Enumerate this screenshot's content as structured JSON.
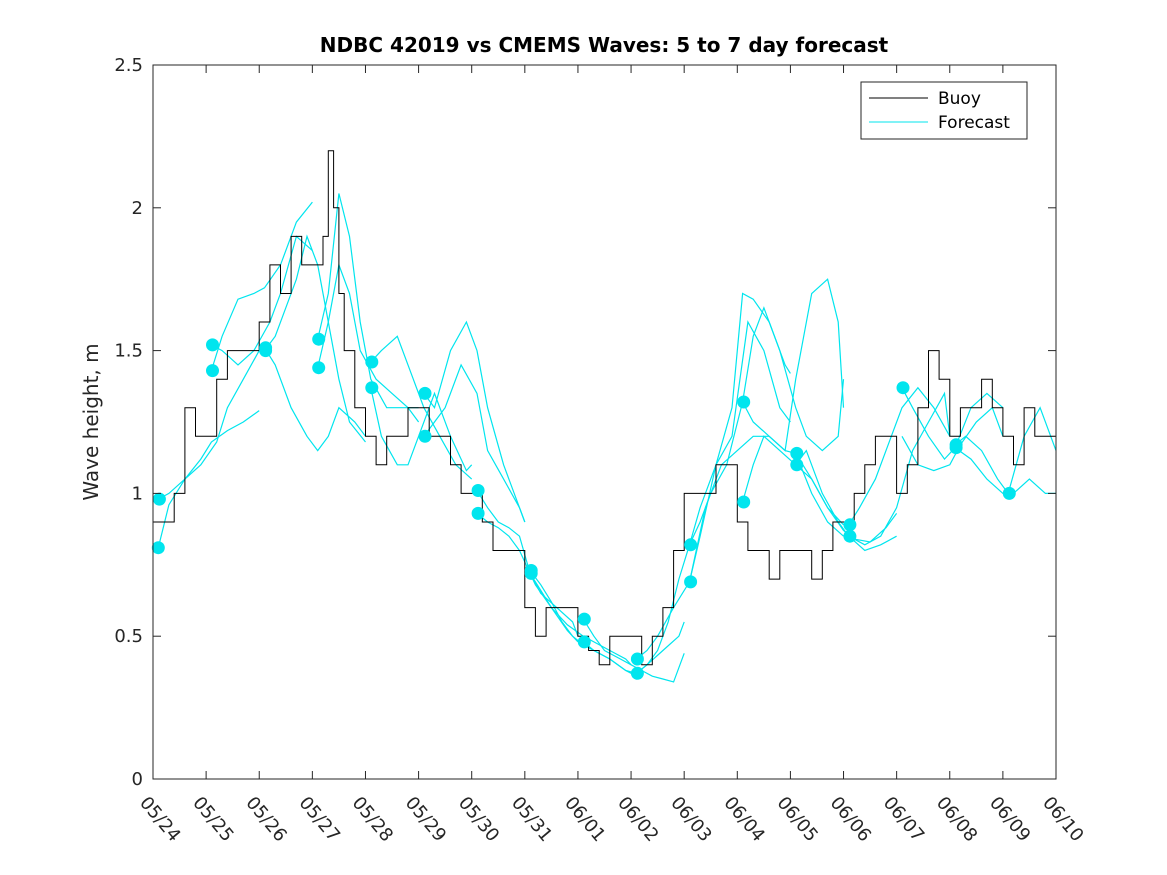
{
  "chart_data": {
    "type": "line",
    "title": "NDBC 42019 vs CMEMS Waves: 5 to 7 day forecast",
    "xlabel": "",
    "ylabel": "Wave height, m",
    "xlim": [
      "05/24",
      "06/10"
    ],
    "ylim": [
      0,
      2.5
    ],
    "x_ticks": [
      "05/24",
      "05/25",
      "05/26",
      "05/27",
      "05/28",
      "05/29",
      "05/30",
      "05/31",
      "06/01",
      "06/02",
      "06/03",
      "06/04",
      "06/05",
      "06/06",
      "06/07",
      "06/08",
      "06/09",
      "06/10"
    ],
    "y_ticks": [
      "0",
      "0.5",
      "1",
      "1.5",
      "2",
      "2.5"
    ],
    "grid": false,
    "legend": {
      "position": "top-right",
      "entries": [
        "Buoy",
        "Forecast"
      ]
    },
    "colors": {
      "buoy": "#000000",
      "forecast": "#00e5ee"
    },
    "buoy": {
      "name": "Buoy",
      "x": [
        0.0,
        0.2,
        0.4,
        0.6,
        0.8,
        1.0,
        1.2,
        1.4,
        1.6,
        1.8,
        2.0,
        2.2,
        2.4,
        2.6,
        2.8,
        3.0,
        3.2,
        3.3,
        3.4,
        3.5,
        3.6,
        3.8,
        4.0,
        4.2,
        4.4,
        4.6,
        4.8,
        5.0,
        5.2,
        5.4,
        5.6,
        5.8,
        6.0,
        6.2,
        6.4,
        6.6,
        6.8,
        7.0,
        7.2,
        7.4,
        7.6,
        7.8,
        8.0,
        8.2,
        8.4,
        8.6,
        8.8,
        9.0,
        9.2,
        9.4,
        9.6,
        9.8,
        10.0,
        10.2,
        10.4,
        10.6,
        10.8,
        11.0,
        11.2,
        11.4,
        11.6,
        11.8,
        12.0,
        12.2,
        12.4,
        12.6,
        12.8,
        13.0,
        13.2,
        13.4,
        13.6,
        13.8,
        14.0,
        14.2,
        14.4,
        14.6,
        14.8,
        15.0,
        15.2,
        15.4,
        15.6,
        15.8,
        16.0,
        16.2,
        16.4,
        16.6,
        16.8,
        17.0
      ],
      "y": [
        0.9,
        0.9,
        1.0,
        1.3,
        1.2,
        1.2,
        1.4,
        1.5,
        1.5,
        1.5,
        1.6,
        1.8,
        1.7,
        1.9,
        1.8,
        1.8,
        1.9,
        2.2,
        2.0,
        1.7,
        1.5,
        1.3,
        1.2,
        1.1,
        1.2,
        1.2,
        1.3,
        1.3,
        1.2,
        1.2,
        1.1,
        1.0,
        1.0,
        0.9,
        0.8,
        0.8,
        0.8,
        0.6,
        0.5,
        0.6,
        0.6,
        0.6,
        0.5,
        0.45,
        0.4,
        0.5,
        0.5,
        0.5,
        0.4,
        0.5,
        0.6,
        0.8,
        1.0,
        1.0,
        1.0,
        1.1,
        1.1,
        0.9,
        0.8,
        0.8,
        0.7,
        0.8,
        0.8,
        0.8,
        0.7,
        0.8,
        0.9,
        0.9,
        1.0,
        1.1,
        1.2,
        1.2,
        1.0,
        1.1,
        1.3,
        1.5,
        1.4,
        1.2,
        1.3,
        1.3,
        1.4,
        1.3,
        1.2,
        1.1,
        1.3,
        1.2,
        1.2,
        1.1
      ]
    },
    "forecast_runs": [
      {
        "x": [
          0.1,
          0.3,
          0.6,
          0.9,
          1.1,
          1.4,
          1.7,
          2.0
        ],
        "y": [
          0.81,
          0.96,
          1.05,
          1.12,
          1.18,
          1.22,
          1.25,
          1.29
        ]
      },
      {
        "x": [
          0.1,
          0.3,
          0.6,
          0.9,
          1.2,
          1.4,
          1.7,
          2.0
        ],
        "y": [
          0.98,
          1.0,
          1.05,
          1.1,
          1.18,
          1.3,
          1.4,
          1.5
        ]
      },
      {
        "x": [
          1.1,
          1.3,
          1.6,
          1.9,
          2.1,
          2.4,
          2.7,
          3.0
        ],
        "y": [
          1.43,
          1.55,
          1.68,
          1.7,
          1.72,
          1.8,
          1.95,
          2.02
        ]
      },
      {
        "x": [
          1.1,
          1.3,
          1.6,
          1.9,
          2.2,
          2.4,
          2.7,
          3.0
        ],
        "y": [
          1.52,
          1.5,
          1.45,
          1.5,
          1.6,
          1.7,
          1.9,
          1.85
        ]
      },
      {
        "x": [
          2.1,
          2.3,
          2.5,
          2.7,
          2.9,
          3.1,
          3.3,
          3.5,
          3.7,
          4.0
        ],
        "y": [
          1.5,
          1.55,
          1.65,
          1.75,
          1.9,
          1.8,
          1.6,
          1.4,
          1.25,
          1.18
        ]
      },
      {
        "x": [
          2.1,
          2.3,
          2.6,
          2.9,
          3.1,
          3.3,
          3.5,
          3.8,
          4.0
        ],
        "y": [
          1.51,
          1.45,
          1.3,
          1.2,
          1.15,
          1.2,
          1.3,
          1.25,
          1.2
        ]
      },
      {
        "x": [
          3.1,
          3.3,
          3.5,
          3.7,
          3.9,
          4.1,
          4.4,
          4.7,
          5.0
        ],
        "y": [
          1.54,
          1.7,
          2.05,
          1.9,
          1.6,
          1.4,
          1.3,
          1.3,
          1.3
        ]
      },
      {
        "x": [
          3.1,
          3.3,
          3.5,
          3.7,
          3.9,
          4.2,
          4.5,
          4.8,
          5.0
        ],
        "y": [
          1.44,
          1.6,
          1.8,
          1.7,
          1.5,
          1.4,
          1.35,
          1.3,
          1.25
        ]
      },
      {
        "x": [
          4.1,
          4.3,
          4.6,
          4.9,
          5.1,
          5.4,
          5.7,
          6.0
        ],
        "y": [
          1.46,
          1.5,
          1.55,
          1.4,
          1.3,
          1.2,
          1.1,
          1.05
        ]
      },
      {
        "x": [
          4.1,
          4.3,
          4.6,
          4.8,
          5.0,
          5.3,
          5.6,
          5.9,
          6.0
        ],
        "y": [
          1.37,
          1.2,
          1.1,
          1.1,
          1.2,
          1.35,
          1.2,
          1.08,
          1.1
        ]
      },
      {
        "x": [
          5.1,
          5.3,
          5.6,
          5.9,
          6.1,
          6.3,
          6.6,
          6.9,
          7.0
        ],
        "y": [
          1.35,
          1.3,
          1.5,
          1.6,
          1.5,
          1.3,
          1.1,
          0.95,
          0.9
        ]
      },
      {
        "x": [
          5.1,
          5.3,
          5.5,
          5.8,
          6.1,
          6.3,
          6.6,
          6.9,
          7.0
        ],
        "y": [
          1.2,
          1.25,
          1.3,
          1.45,
          1.35,
          1.15,
          1.05,
          0.95,
          0.9
        ]
      },
      {
        "x": [
          6.1,
          6.3,
          6.5,
          6.7,
          6.9,
          7.1,
          7.3,
          7.6,
          7.9,
          8.0
        ],
        "y": [
          1.01,
          0.95,
          0.9,
          0.88,
          0.85,
          0.72,
          0.65,
          0.6,
          0.55,
          0.5
        ]
      },
      {
        "x": [
          6.1,
          6.3,
          6.5,
          6.7,
          6.9,
          7.2,
          7.5,
          7.8,
          8.0
        ],
        "y": [
          0.93,
          0.9,
          0.88,
          0.85,
          0.8,
          0.68,
          0.6,
          0.52,
          0.48
        ]
      },
      {
        "x": [
          7.1,
          7.3,
          7.5,
          7.7,
          7.9,
          8.1,
          8.3,
          8.6,
          8.9,
          9.0
        ],
        "y": [
          0.73,
          0.68,
          0.62,
          0.55,
          0.5,
          0.47,
          0.45,
          0.42,
          0.38,
          0.37
        ]
      },
      {
        "x": [
          7.1,
          7.3,
          7.5,
          7.8,
          8.1,
          8.3,
          8.6,
          8.9,
          9.0
        ],
        "y": [
          0.72,
          0.66,
          0.6,
          0.54,
          0.5,
          0.48,
          0.45,
          0.42,
          0.4
        ]
      },
      {
        "x": [
          8.1,
          8.3,
          8.5,
          8.8,
          9.0,
          9.2,
          9.4,
          9.6,
          9.8,
          10.0
        ],
        "y": [
          0.56,
          0.5,
          0.45,
          0.42,
          0.4,
          0.38,
          0.36,
          0.35,
          0.34,
          0.44
        ]
      },
      {
        "x": [
          8.1,
          8.3,
          8.6,
          8.9,
          9.1,
          9.3,
          9.6,
          9.9,
          10.0
        ],
        "y": [
          0.48,
          0.45,
          0.42,
          0.38,
          0.37,
          0.4,
          0.45,
          0.5,
          0.55
        ]
      },
      {
        "x": [
          9.1,
          9.3,
          9.5,
          9.7,
          9.9,
          10.1,
          10.3,
          10.6,
          10.9,
          11.1,
          11.3,
          11.6,
          11.9,
          12.0
        ],
        "y": [
          0.37,
          0.4,
          0.45,
          0.55,
          0.7,
          0.82,
          0.95,
          1.1,
          1.3,
          1.7,
          1.68,
          1.6,
          1.45,
          1.42
        ]
      },
      {
        "x": [
          9.1,
          9.3,
          9.5,
          9.8,
          10.1,
          10.3,
          10.6,
          10.9,
          11.2,
          11.5,
          11.8,
          12.0
        ],
        "y": [
          0.42,
          0.45,
          0.5,
          0.6,
          0.69,
          0.85,
          1.1,
          1.2,
          1.6,
          1.5,
          1.3,
          1.25
        ]
      },
      {
        "x": [
          10.1,
          10.3,
          10.5,
          10.8,
          11.1,
          11.3,
          11.5,
          11.8,
          12.1,
          12.3,
          12.6,
          12.9,
          13.0
        ],
        "y": [
          0.82,
          0.9,
          1.0,
          1.1,
          1.32,
          1.55,
          1.65,
          1.5,
          1.3,
          1.2,
          1.15,
          1.2,
          1.4
        ]
      },
      {
        "x": [
          10.1,
          10.4,
          10.7,
          11.0,
          11.3,
          11.6,
          11.9,
          12.1,
          12.4,
          12.7,
          12.9,
          13.0
        ],
        "y": [
          0.69,
          0.95,
          1.1,
          1.15,
          1.2,
          1.2,
          1.15,
          1.4,
          1.7,
          1.75,
          1.6,
          1.3
        ]
      },
      {
        "x": [
          11.1,
          11.3,
          11.5,
          11.8,
          12.1,
          12.4,
          12.7,
          13.0
        ],
        "y": [
          0.97,
          1.1,
          1.2,
          1.15,
          1.1,
          1.05,
          0.95,
          0.89
        ]
      },
      {
        "x": [
          11.1,
          11.3,
          11.6,
          11.9,
          12.1,
          12.4,
          12.7,
          13.0
        ],
        "y": [
          1.32,
          1.25,
          1.2,
          1.15,
          1.14,
          1.0,
          0.9,
          0.85
        ]
      },
      {
        "x": [
          12.1,
          12.3,
          12.6,
          12.9,
          13.1,
          13.4,
          13.7,
          14.0
        ],
        "y": [
          1.1,
          1.15,
          1.0,
          0.9,
          0.85,
          0.8,
          0.82,
          0.85
        ]
      },
      {
        "x": [
          12.1,
          12.4,
          12.7,
          13.0,
          13.2,
          13.5,
          13.8,
          14.0
        ],
        "y": [
          1.14,
          1.05,
          0.95,
          0.87,
          0.84,
          0.83,
          0.88,
          0.93
        ]
      },
      {
        "x": [
          13.1,
          13.3,
          13.6,
          13.9,
          14.1,
          14.4,
          14.7,
          15.0
        ],
        "y": [
          0.89,
          0.95,
          1.05,
          1.2,
          1.3,
          1.37,
          1.3,
          1.2
        ]
      },
      {
        "x": [
          13.1,
          13.4,
          13.7,
          14.0,
          14.3,
          14.6,
          14.9,
          15.0
        ],
        "y": [
          0.85,
          0.82,
          0.85,
          0.95,
          1.15,
          1.25,
          1.35,
          1.2
        ]
      },
      {
        "x": [
          14.1,
          14.3,
          14.6,
          14.9,
          15.1,
          15.4,
          15.7,
          16.0
        ],
        "y": [
          1.37,
          1.3,
          1.2,
          1.12,
          1.16,
          1.3,
          1.35,
          1.3
        ]
      },
      {
        "x": [
          14.1,
          14.4,
          14.7,
          15.0,
          15.2,
          15.5,
          15.8,
          16.0
        ],
        "y": [
          1.2,
          1.1,
          1.08,
          1.1,
          1.17,
          1.25,
          1.3,
          1.2
        ]
      },
      {
        "x": [
          15.1,
          15.3,
          15.6,
          15.9,
          16.1,
          16.4,
          16.7,
          17.0
        ],
        "y": [
          1.17,
          1.2,
          1.15,
          1.05,
          1.0,
          1.2,
          1.3,
          1.15
        ]
      },
      {
        "x": [
          15.1,
          15.4,
          15.7,
          16.0,
          16.2,
          16.5,
          16.8,
          17.0
        ],
        "y": [
          1.16,
          1.12,
          1.05,
          1.0,
          1.0,
          1.05,
          1.0,
          1.0
        ]
      }
    ],
    "forecast_markers": {
      "x": [
        0.12,
        0.1,
        1.12,
        1.12,
        2.12,
        2.12,
        3.12,
        3.12,
        4.12,
        4.12,
        5.12,
        5.12,
        6.12,
        6.12,
        7.12,
        7.12,
        8.12,
        8.12,
        9.12,
        9.12,
        10.12,
        10.12,
        11.12,
        11.12,
        12.12,
        12.12,
        13.12,
        13.12,
        14.12,
        15.12,
        15.12,
        16.12
      ],
      "y": [
        0.98,
        0.81,
        1.52,
        1.43,
        1.51,
        1.5,
        1.54,
        1.44,
        1.46,
        1.37,
        1.35,
        1.2,
        1.01,
        0.93,
        0.73,
        0.72,
        0.56,
        0.48,
        0.42,
        0.37,
        0.82,
        0.69,
        1.32,
        0.97,
        1.14,
        1.1,
        0.89,
        0.85,
        1.37,
        1.17,
        1.16,
        1.0
      ]
    }
  }
}
